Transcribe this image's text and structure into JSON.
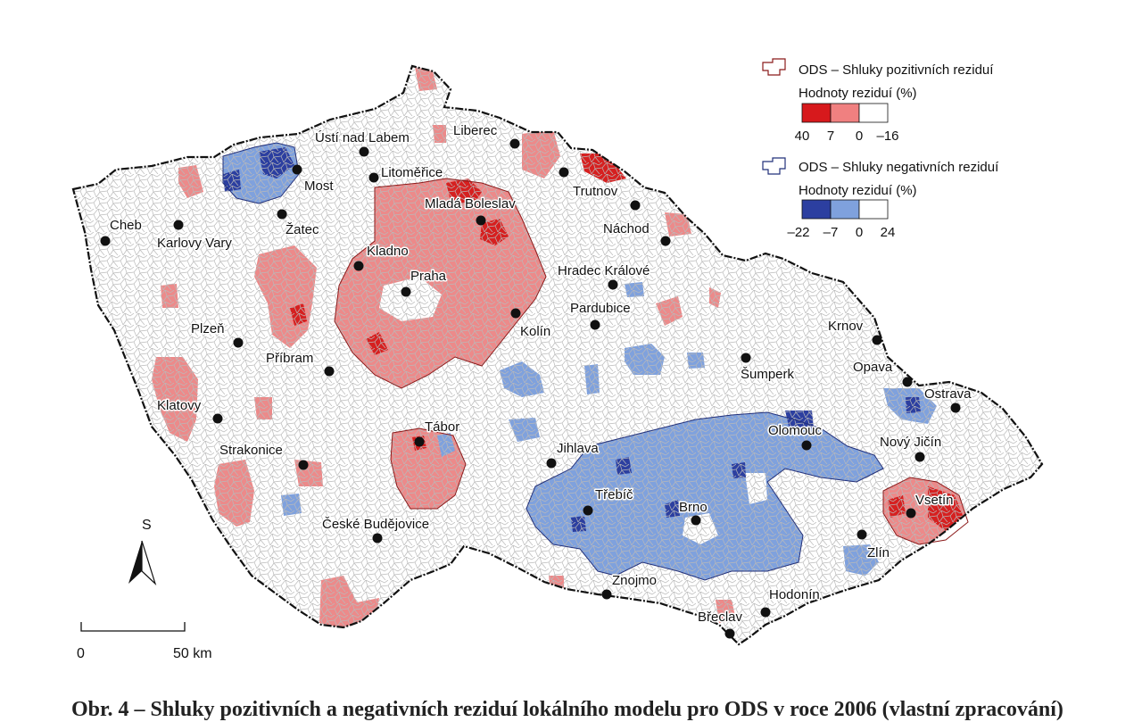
{
  "map": {
    "cities": [
      {
        "name": "Cheb"
      },
      {
        "name": "Karlovy Vary"
      },
      {
        "name": "Most"
      },
      {
        "name": "Ústí nad Labem"
      },
      {
        "name": "Liberec"
      },
      {
        "name": "Litoměřice"
      },
      {
        "name": "Žatec"
      },
      {
        "name": "Mladá Boleslav"
      },
      {
        "name": "Trutnov"
      },
      {
        "name": "Náchod"
      },
      {
        "name": "Kladno"
      },
      {
        "name": "Praha"
      },
      {
        "name": "Hradec Králové"
      },
      {
        "name": "Pardubice"
      },
      {
        "name": "Kolín"
      },
      {
        "name": "Plzeň"
      },
      {
        "name": "Příbram"
      },
      {
        "name": "Krnov"
      },
      {
        "name": "Šumperk"
      },
      {
        "name": "Opava"
      },
      {
        "name": "Ostrava"
      },
      {
        "name": "Klatovy"
      },
      {
        "name": "Tábor"
      },
      {
        "name": "Olomouc"
      },
      {
        "name": "Nový Jičín"
      },
      {
        "name": "Jihlava"
      },
      {
        "name": "Strakonice"
      },
      {
        "name": "Třebíč"
      },
      {
        "name": "Brno"
      },
      {
        "name": "Vsetín"
      },
      {
        "name": "České Budějovice"
      },
      {
        "name": "Zlín"
      },
      {
        "name": "Znojmo"
      },
      {
        "name": "Hodonín"
      },
      {
        "name": "Břeclav"
      }
    ]
  },
  "legend": {
    "positive": {
      "title": "ODS – Shluky pozitivních reziduí",
      "subtitle": "Hodnoty reziduí (%)",
      "ticks": [
        "40",
        "7",
        "0",
        "–16"
      ],
      "colors": [
        "#d7191c",
        "#f08080",
        "#ffffff"
      ]
    },
    "negative": {
      "title": "ODS – Shluky negativních reziduí",
      "subtitle": "Hodnoty reziduí (%)",
      "ticks": [
        "–22",
        "–7",
        "0",
        "24"
      ],
      "colors": [
        "#2c3fa0",
        "#7fa1dd",
        "#ffffff"
      ]
    }
  },
  "north_arrow": {
    "label": "S"
  },
  "scale_bar": {
    "start": "0",
    "end": "50 km"
  },
  "caption": "Obr. 4 – Shluky pozitivních a negativních reziduí lokálního modelu pro ODS v roce 2006 (vlastní zpracování)"
}
